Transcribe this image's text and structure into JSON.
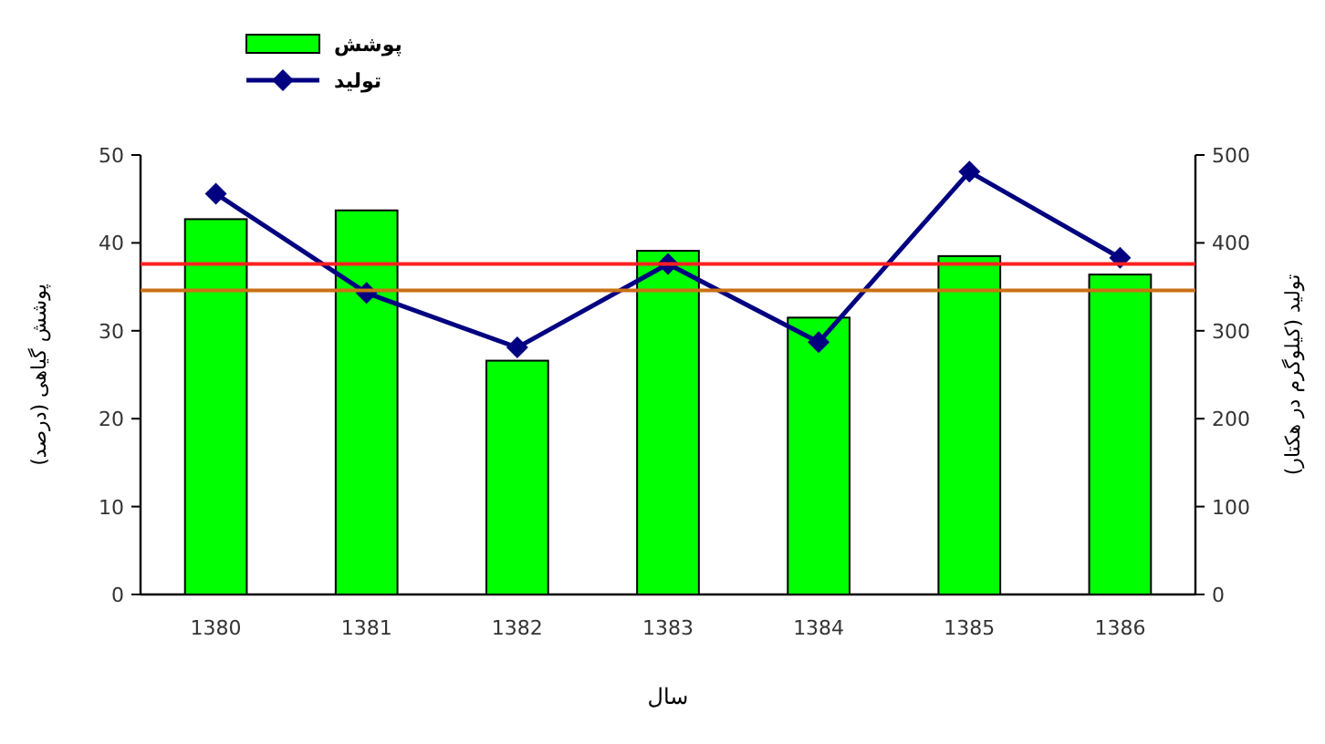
{
  "chart_data": {
    "type": "bar",
    "categories": [
      "1380",
      "1381",
      "1382",
      "1383",
      "1384",
      "1385",
      "1386"
    ],
    "series": [
      {
        "name": "پوشش",
        "color": "#00ff00",
        "values": [
          42.7,
          43.7,
          26.6,
          39.1,
          31.5,
          38.5,
          36.4
        ]
      },
      {
        "name": "تولید",
        "type": "line",
        "axis": "y2",
        "color": "#000080",
        "values": [
          456,
          343,
          281,
          376,
          287,
          481,
          383
        ]
      }
    ],
    "xlabel": "سال",
    "ylabel": "پوشش گیاهی (درصد)",
    "y2label": "تولید (کیلوگرم در هکتار)",
    "ylim": [
      0,
      50
    ],
    "yticks": [
      0,
      10,
      20,
      30,
      40,
      50
    ],
    "y2lim": [
      0,
      500
    ],
    "y2ticks": [
      0,
      100,
      200,
      300,
      400,
      500
    ],
    "ref_lines": [
      {
        "axis": "y",
        "value": 37.6,
        "color": "#ff2020"
      },
      {
        "axis": "y",
        "value": 34.6,
        "color": "#cc7014"
      }
    ],
    "marker": "diamond",
    "legend": "top left"
  }
}
